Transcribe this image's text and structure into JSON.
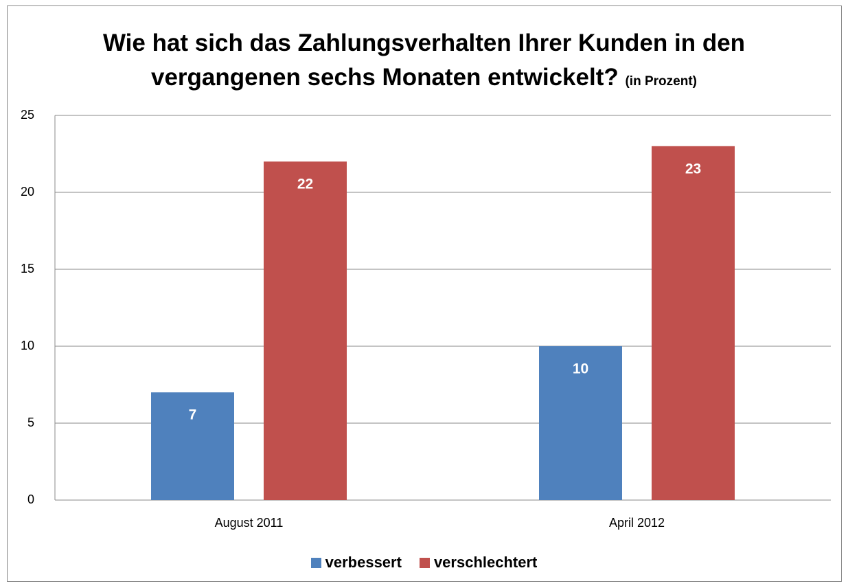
{
  "chart_data": {
    "type": "bar",
    "title": "Wie hat sich das Zahlungsverhalten Ihrer Kunden in den vergangenen sechs Monaten entwickelt?",
    "subtitle": "(in Prozent)",
    "categories": [
      "August 2011",
      "April 2012"
    ],
    "series": [
      {
        "name": "verbessert",
        "color": "#4f81bd",
        "values": [
          7,
          10
        ]
      },
      {
        "name": "verschlechtert",
        "color": "#c0504d",
        "values": [
          22,
          23
        ]
      }
    ],
    "ylim": [
      0,
      25
    ],
    "yticks": [
      0,
      5,
      10,
      15,
      20,
      25
    ],
    "grid": true,
    "legend": "bottom"
  }
}
